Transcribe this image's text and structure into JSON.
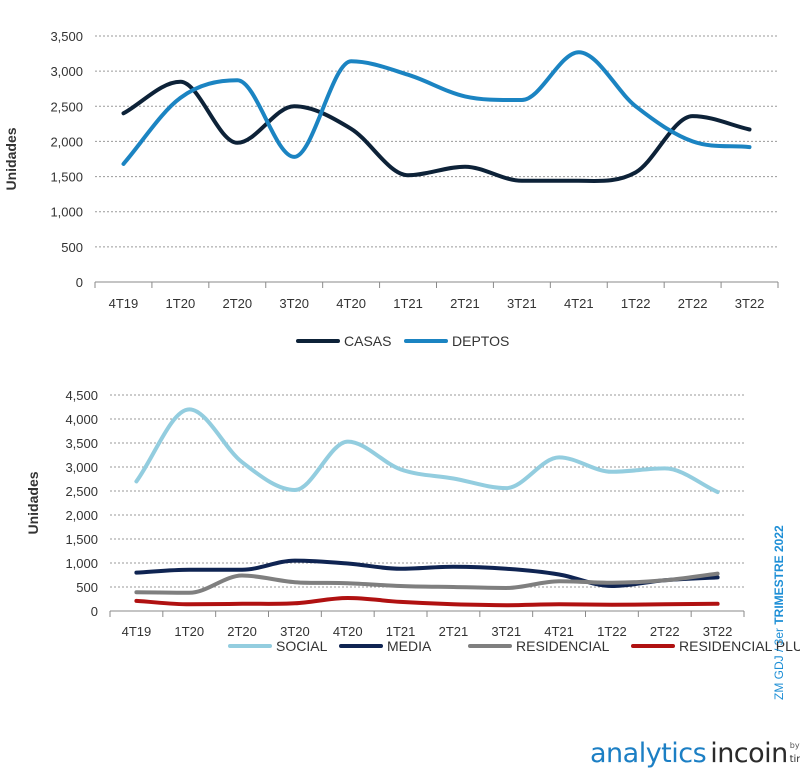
{
  "chart_data": [
    {
      "type": "line",
      "ylabel": "Unidades",
      "ylim": [
        0,
        3500
      ],
      "yticks": [
        "0",
        "500",
        "1,000",
        "1,500",
        "2,000",
        "2,500",
        "3,000",
        "3,500"
      ],
      "categories": [
        "4T19",
        "1T20",
        "2T20",
        "3T20",
        "4T20",
        "1T21",
        "2T21",
        "3T21",
        "4T21",
        "1T22",
        "2T22",
        "3T22"
      ],
      "grid": true,
      "legend_position": "bottom",
      "series": [
        {
          "name": "CASAS",
          "color": "#0d2238",
          "values": [
            2400,
            2850,
            1980,
            2500,
            2180,
            1520,
            1640,
            1440,
            1440,
            1560,
            2360,
            2170
          ]
        },
        {
          "name": "DEPTOS",
          "color": "#1b84c2",
          "values": [
            1680,
            2620,
            2870,
            1780,
            3140,
            2950,
            2640,
            2590,
            3270,
            2500,
            2000,
            1920
          ]
        }
      ]
    },
    {
      "type": "line",
      "ylabel": "Unidades",
      "ylim": [
        0,
        4500
      ],
      "yticks": [
        "0",
        "500",
        "1,000",
        "1,500",
        "2,000",
        "2,500",
        "3,000",
        "3,500",
        "4,000",
        "4,500"
      ],
      "categories": [
        "4T19",
        "1T20",
        "2T20",
        "3T20",
        "4T20",
        "1T21",
        "2T21",
        "3T21",
        "4T21",
        "1T22",
        "2T22",
        "3T22"
      ],
      "grid": true,
      "legend_position": "bottom",
      "series": [
        {
          "name": "SOCIAL",
          "color": "#93cddf",
          "values": [
            2700,
            4200,
            3100,
            2520,
            3530,
            2950,
            2760,
            2560,
            3200,
            2900,
            2970,
            2480
          ]
        },
        {
          "name": "MEDIA",
          "color": "#0f2452",
          "values": [
            800,
            860,
            860,
            1050,
            990,
            880,
            920,
            880,
            760,
            520,
            640,
            700
          ]
        },
        {
          "name": "RESIDENCIAL",
          "color": "#7f7f7f",
          "values": [
            390,
            380,
            740,
            600,
            580,
            520,
            500,
            480,
            620,
            590,
            640,
            780
          ]
        },
        {
          "name": "RESIDENCIAL PLUS",
          "color": "#b01111",
          "values": [
            210,
            140,
            150,
            160,
            270,
            190,
            140,
            120,
            140,
            130,
            140,
            150
          ]
        }
      ]
    }
  ],
  "side_note": {
    "prefix": "ZM GDJ  / 3er ",
    "bold": "TRIMESTRE 2022"
  },
  "brand": {
    "analytics": "analytics",
    "incoin": "incoin",
    "by": "by",
    "tinsa": "tinsa"
  }
}
